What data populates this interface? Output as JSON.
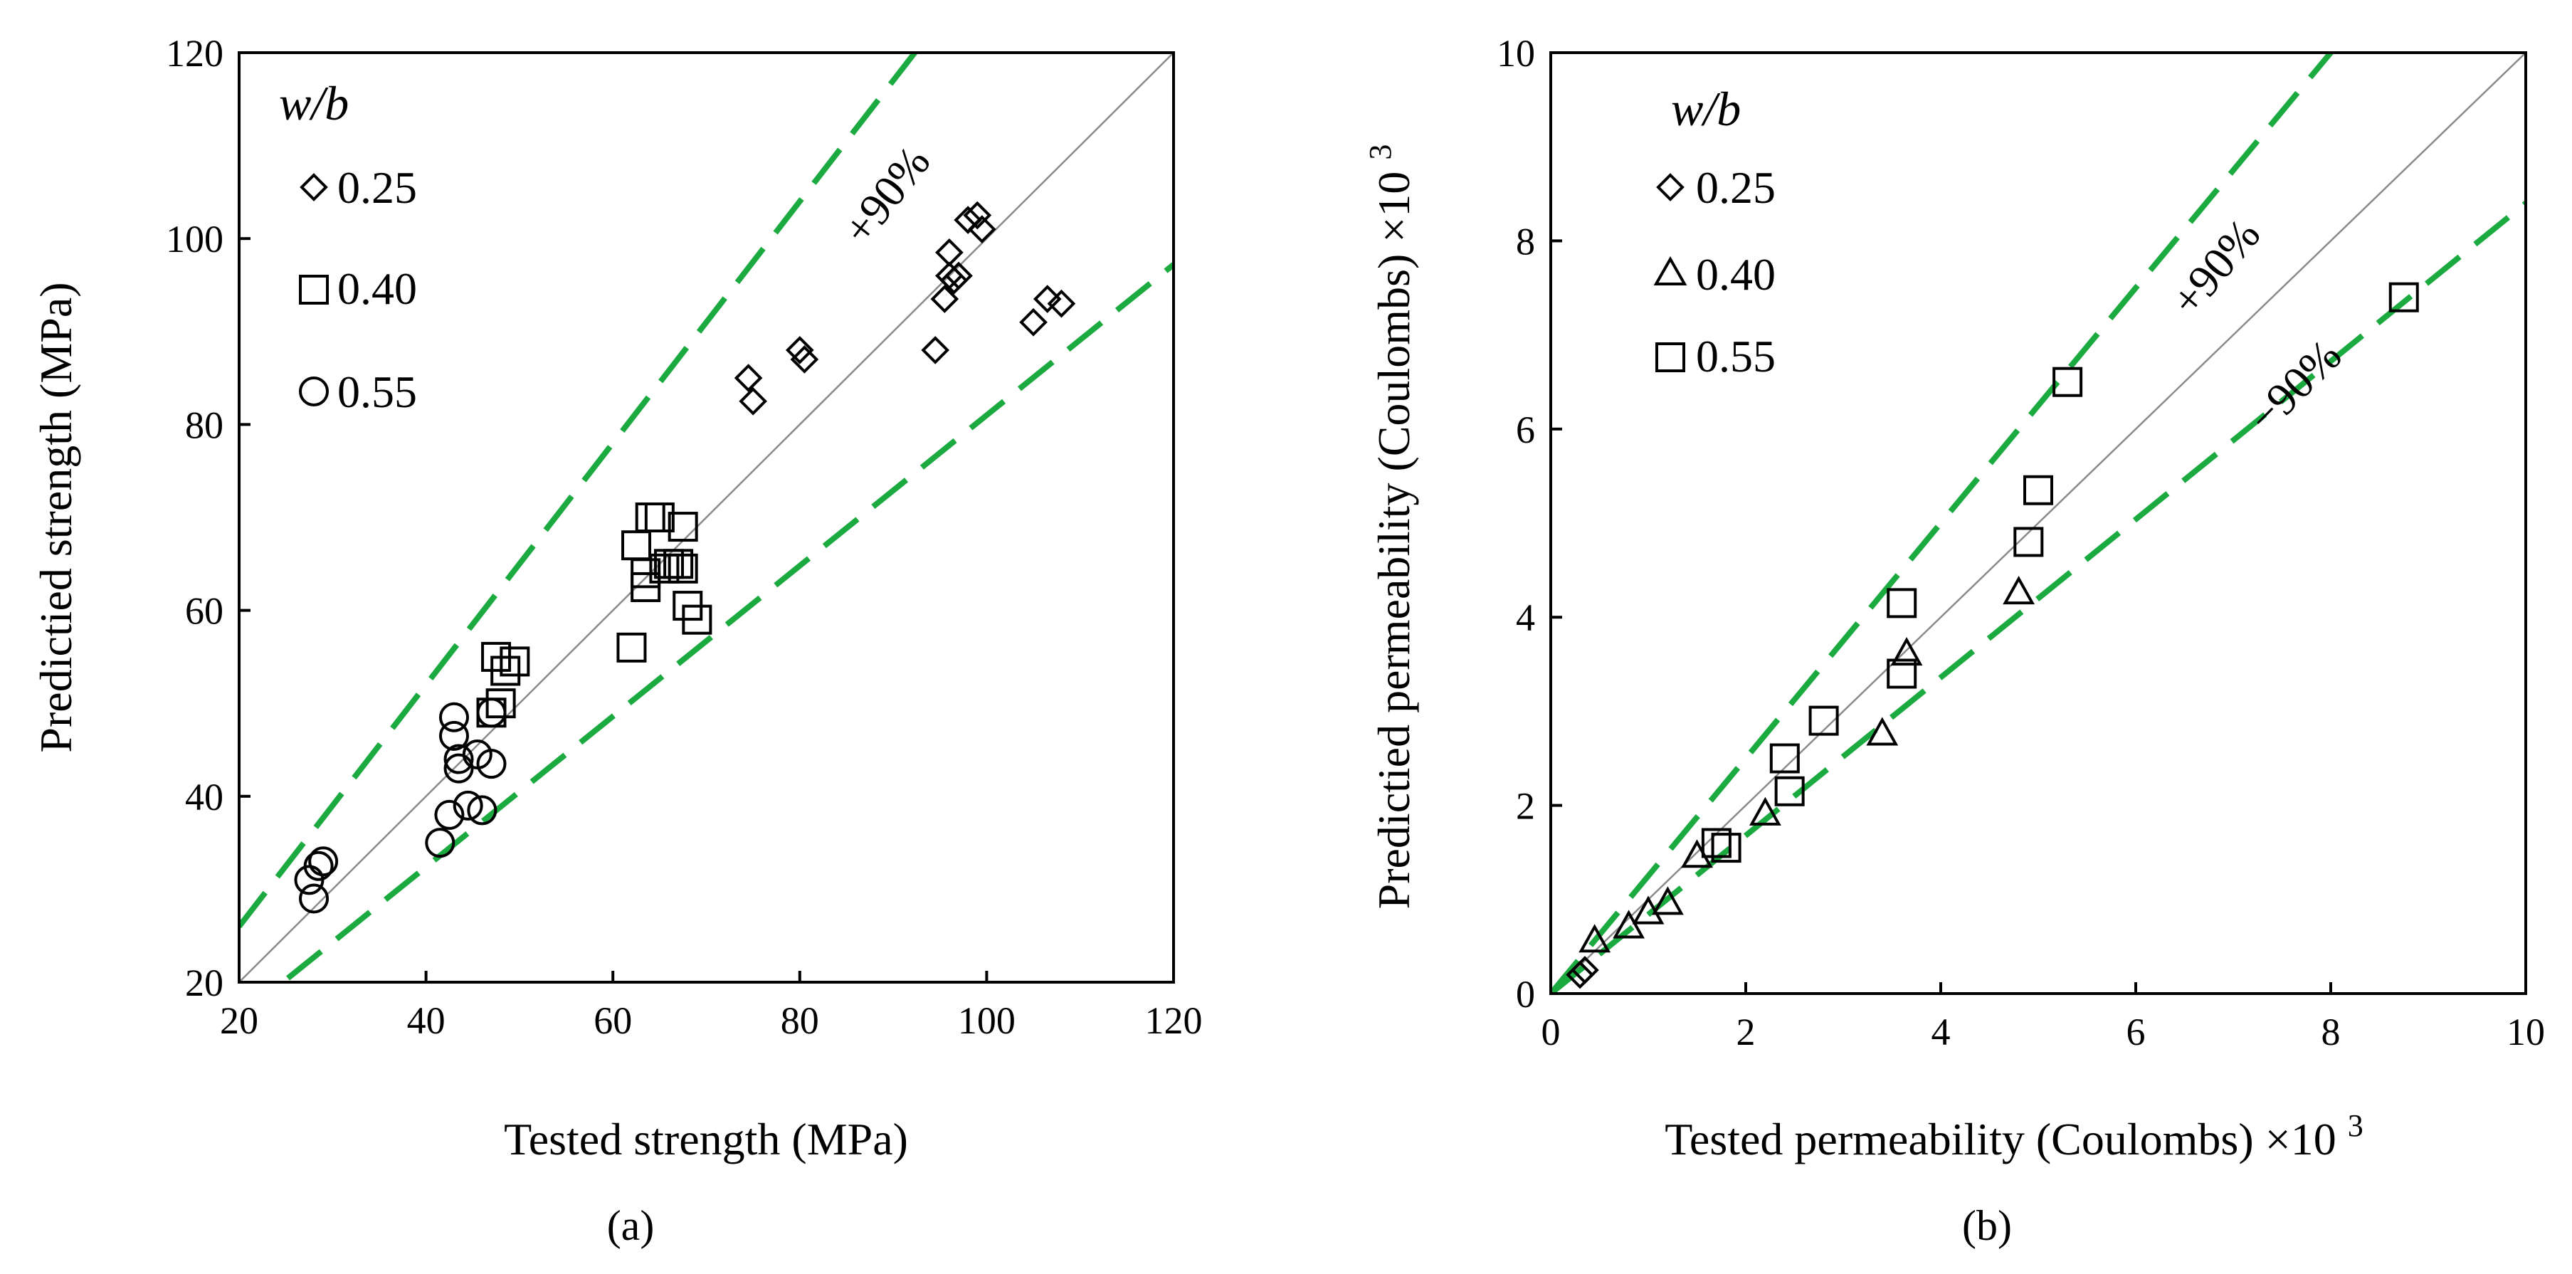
{
  "colors": {
    "bound": "#1aaa3f",
    "ideal_line": "#8a8a8a",
    "marker": "#000000"
  },
  "chart_data": [
    {
      "panel": "(a)",
      "type": "scatter",
      "title": "",
      "xlabel": "Tested strength (MPa)",
      "ylabel": "Predictied strength (MPa)",
      "xlim": [
        20,
        120
      ],
      "ylim": [
        20,
        120
      ],
      "xticks": [
        "20",
        "40",
        "60",
        "80",
        "100",
        "120"
      ],
      "yticks": [
        "20",
        "40",
        "60",
        "80",
        "100",
        "120"
      ],
      "grid": false,
      "legend_title": "w/b",
      "legend_position": "top-left",
      "reference_line": {
        "slope": 1,
        "label": ""
      },
      "bounds": [
        {
          "label": "+90%",
          "slope": 1.3
        },
        {
          "label": "",
          "slope": 0.81
        }
      ],
      "series": [
        {
          "name": "0.25",
          "marker": "diamond",
          "points": [
            [
              74.5,
              85
            ],
            [
              75,
              82.5
            ],
            [
              80,
              88
            ],
            [
              80.5,
              87
            ],
            [
              94.5,
              88
            ],
            [
              95.5,
              93.5
            ],
            [
              96,
              96
            ],
            [
              96.5,
              95.5
            ],
            [
              96,
              98.5
            ],
            [
              97,
              96
            ],
            [
              98,
              102
            ],
            [
              99,
              102.5
            ],
            [
              99.5,
              101
            ],
            [
              105,
              91
            ],
            [
              106.5,
              93.5
            ],
            [
              108,
              93
            ]
          ]
        },
        {
          "name": "0.40",
          "marker": "square",
          "points": [
            [
              62,
              56
            ],
            [
              62.5,
              67
            ],
            [
              63.5,
              64
            ],
            [
              63.5,
              62.5
            ],
            [
              64,
              70
            ],
            [
              65,
              70
            ],
            [
              65.5,
              64.5
            ],
            [
              66,
              65
            ],
            [
              67,
              65
            ],
            [
              67.5,
              69
            ],
            [
              67.5,
              64.5
            ],
            [
              68,
              60.5
            ],
            [
              69,
              59
            ],
            [
              47.5,
              55
            ],
            [
              48.5,
              53.5
            ],
            [
              49.5,
              54.5
            ],
            [
              47,
              49
            ],
            [
              48,
              50
            ]
          ]
        },
        {
          "name": "0.55",
          "marker": "circle",
          "points": [
            [
              27.5,
              31
            ],
            [
              28.5,
              32.5
            ],
            [
              29,
              33
            ],
            [
              28,
              29
            ],
            [
              41.5,
              35
            ],
            [
              42.5,
              38
            ],
            [
              43,
              48.5
            ],
            [
              43,
              46.5
            ],
            [
              43.5,
              44
            ],
            [
              43.5,
              43
            ],
            [
              44.5,
              39
            ],
            [
              45.5,
              44.5
            ],
            [
              46,
              38.5
            ],
            [
              47,
              43.5
            ],
            [
              47,
              49
            ]
          ]
        }
      ]
    },
    {
      "panel": "(b)",
      "type": "scatter",
      "title": "",
      "xlabel": "Tested permeability (Coulombs)",
      "ylabel": "Predictied permeability (Coulombs)",
      "scale_multiplier": "×10",
      "scale_exponent": "3",
      "xlim": [
        0,
        10
      ],
      "ylim": [
        0,
        10
      ],
      "xticks": [
        "0",
        "2",
        "4",
        "6",
        "8",
        "10"
      ],
      "yticks": [
        "0",
        "2",
        "4",
        "6",
        "8",
        "10"
      ],
      "grid": false,
      "legend_title": "w/b",
      "legend_position": "top-left",
      "reference_line": {
        "slope": 1,
        "label": ""
      },
      "bounds": [
        {
          "label": "+90%",
          "slope": 1.25
        },
        {
          "label": "−90%",
          "slope": 0.84
        }
      ],
      "series": [
        {
          "name": "0.25",
          "marker": "diamond",
          "points": [
            [
              0.3,
              0.2
            ],
            [
              0.35,
              0.25
            ]
          ]
        },
        {
          "name": "0.40",
          "marker": "triangle",
          "points": [
            [
              0.45,
              0.55
            ],
            [
              0.8,
              0.7
            ],
            [
              1.0,
              0.85
            ],
            [
              1.2,
              0.95
            ],
            [
              1.5,
              1.45
            ],
            [
              2.2,
              1.9
            ],
            [
              3.4,
              2.75
            ],
            [
              3.65,
              3.6
            ],
            [
              4.8,
              4.25
            ]
          ]
        },
        {
          "name": "0.55",
          "marker": "square",
          "points": [
            [
              1.7,
              1.6
            ],
            [
              1.8,
              1.55
            ],
            [
              2.45,
              2.15
            ],
            [
              2.4,
              2.5
            ],
            [
              2.8,
              2.9
            ],
            [
              3.6,
              3.4
            ],
            [
              3.6,
              4.15
            ],
            [
              4.9,
              4.8
            ],
            [
              5.0,
              5.35
            ],
            [
              5.3,
              6.5
            ],
            [
              8.75,
              7.4
            ]
          ]
        }
      ]
    }
  ]
}
